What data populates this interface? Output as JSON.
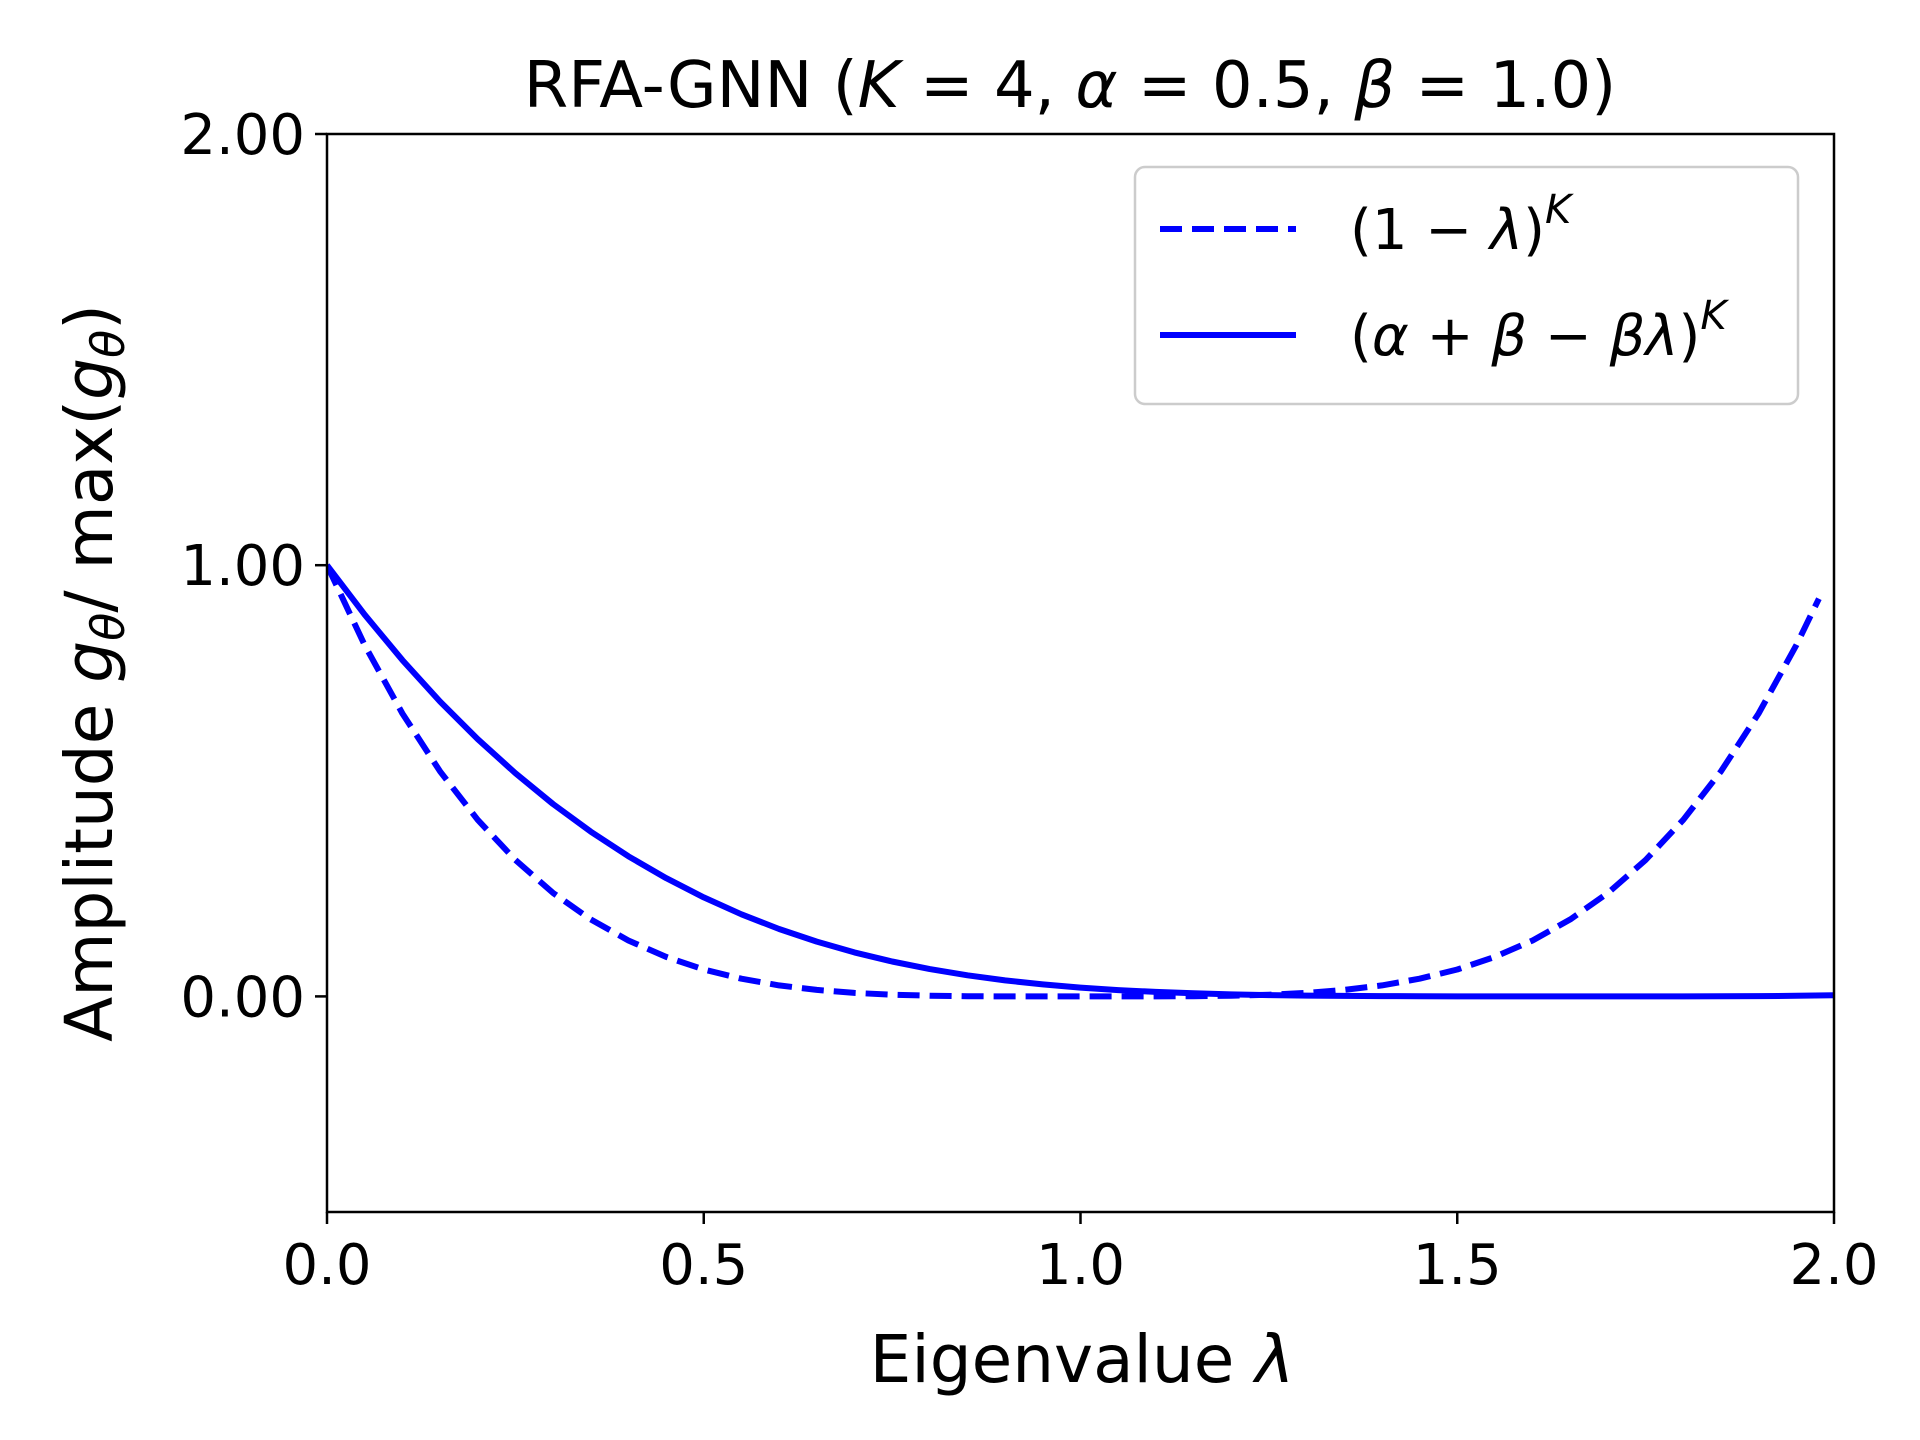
{
  "chart_data": {
    "type": "line",
    "title": {
      "prefix": "RFA-GNN (",
      "K_sym": "K",
      "K_eq": " = 4, ",
      "alpha_sym": "α",
      "alpha_eq": " = 0.5, ",
      "beta_sym": "β",
      "beta_eq": " = 1.0)"
    },
    "xlabel": {
      "text": "Eigenvalue ",
      "sym": "λ"
    },
    "ylabel": {
      "pre": "Amplitude ",
      "g1": "g",
      "sub1": "θ",
      "mid": "/ max(",
      "g2": "g",
      "sub2": "θ",
      "post": ")"
    },
    "xlim": [
      0,
      2
    ],
    "ylim": [
      -0.5,
      2
    ],
    "xticks": [
      0,
      0.5,
      1,
      1.5,
      2
    ],
    "xtick_labels": [
      "0.0",
      "0.5",
      "1.0",
      "1.5",
      "2.0"
    ],
    "yticks": [
      0,
      1,
      2
    ],
    "ytick_labels": [
      "0.00",
      "1.00",
      "2.00"
    ],
    "grid": false,
    "legend_placement": "top-right",
    "series": [
      {
        "name": "(1 − λ)^K",
        "label": {
          "open": "(1 − ",
          "sym": "λ",
          "close": ")",
          "sup": "K"
        },
        "style": "dashed",
        "color": "#0000ff",
        "x": [
          0,
          0.05,
          0.1,
          0.15,
          0.2,
          0.25,
          0.3,
          0.35,
          0.4,
          0.45,
          0.5,
          0.55,
          0.6,
          0.65,
          0.7,
          0.75,
          0.8,
          0.85,
          0.9,
          0.95,
          1,
          1.05,
          1.1,
          1.15,
          1.2,
          1.25,
          1.3,
          1.35,
          1.4,
          1.45,
          1.5,
          1.55,
          1.6,
          1.65,
          1.7,
          1.75,
          1.8,
          1.85,
          1.9,
          1.95,
          1.98
        ],
        "y": [
          1,
          0.8145,
          0.6561,
          0.522,
          0.4096,
          0.3164,
          0.2401,
          0.1785,
          0.1296,
          0.0915,
          0.0625,
          0.041,
          0.0256,
          0.015,
          0.0081,
          0.0039,
          0.0016,
          0.0005,
          0.0001,
          0,
          0,
          0,
          0.0001,
          0.0005,
          0.0016,
          0.0039,
          0.0081,
          0.015,
          0.0256,
          0.041,
          0.0625,
          0.0915,
          0.1296,
          0.1785,
          0.2401,
          0.3164,
          0.4096,
          0.522,
          0.6561,
          0.8145,
          0.9224
        ]
      },
      {
        "name": "(α + β − βλ)^K",
        "label": {
          "open": "(",
          "sym1": "α",
          "mid1": " + ",
          "sym2": "β",
          "mid2": " − ",
          "sym3": "βλ",
          "close": ")",
          "sup": "K"
        },
        "style": "solid",
        "color": "#0000ff",
        "x": [
          0,
          0.05,
          0.1,
          0.15,
          0.2,
          0.25,
          0.3,
          0.35,
          0.4,
          0.45,
          0.5,
          0.55,
          0.6,
          0.65,
          0.7,
          0.75,
          0.8,
          0.85,
          0.9,
          0.95,
          1,
          1.05,
          1.1,
          1.15,
          1.2,
          1.25,
          1.3,
          1.35,
          1.4,
          1.45,
          1.5,
          1.55,
          1.6,
          1.65,
          1.7,
          1.75,
          1.8,
          1.85,
          1.9,
          1.95,
          2
        ],
        "y": [
          1,
          0.8851,
          0.7799,
          0.684,
          0.5967,
          0.5176,
          0.4462,
          0.3822,
          0.325,
          0.2743,
          0.2295,
          0.1903,
          0.1563,
          0.127,
          0.102,
          0.0809,
          0.0633,
          0.0489,
          0.0372,
          0.0278,
          0.0204,
          0.0147,
          0.0104,
          0.0071,
          0.0047,
          0.003,
          0.0018,
          0.0011,
          0.0006,
          0.0003,
          0.0001,
          0.0001,
          0,
          0,
          0,
          0,
          0.0001,
          0.0003,
          0.0008,
          0.0015,
          0.0025
        ]
      }
    ]
  }
}
